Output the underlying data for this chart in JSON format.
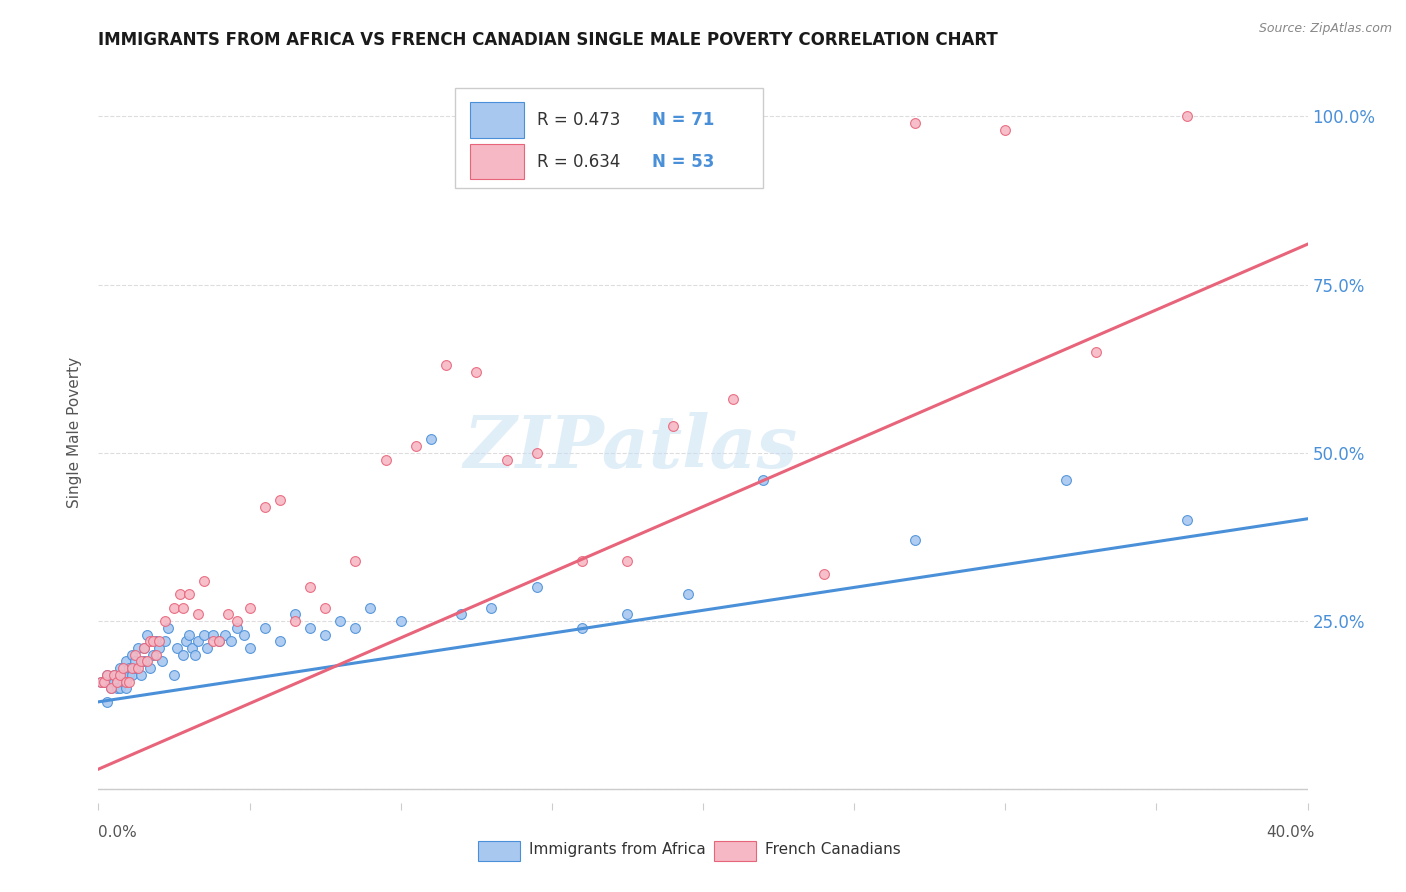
{
  "title": "IMMIGRANTS FROM AFRICA VS FRENCH CANADIAN SINGLE MALE POVERTY CORRELATION CHART",
  "source": "Source: ZipAtlas.com",
  "ylabel": "Single Male Poverty",
  "xlim": [
    0.0,
    0.4
  ],
  "ylim": [
    -0.02,
    1.08
  ],
  "ytick_positions": [
    0.0,
    0.25,
    0.5,
    0.75,
    1.0
  ],
  "ytick_labels": [
    "",
    "25.0%",
    "50.0%",
    "75.0%",
    "100.0%"
  ],
  "blue_color": "#A8C8F0",
  "pink_color": "#F5B8C4",
  "blue_line_color": "#4A90D9",
  "pink_line_color": "#E8647A",
  "legend_text_color": "#4A90D9",
  "grid_color": "#DDDDDD",
  "R_blue": 0.473,
  "N_blue": 71,
  "R_pink": 0.634,
  "N_pink": 53,
  "blue_x": [
    0.001,
    0.002,
    0.003,
    0.003,
    0.004,
    0.004,
    0.005,
    0.005,
    0.006,
    0.006,
    0.007,
    0.007,
    0.008,
    0.008,
    0.009,
    0.009,
    0.01,
    0.01,
    0.011,
    0.011,
    0.012,
    0.012,
    0.013,
    0.014,
    0.015,
    0.015,
    0.016,
    0.017,
    0.018,
    0.019,
    0.02,
    0.021,
    0.022,
    0.023,
    0.025,
    0.026,
    0.028,
    0.029,
    0.03,
    0.031,
    0.032,
    0.033,
    0.035,
    0.036,
    0.038,
    0.04,
    0.042,
    0.044,
    0.046,
    0.048,
    0.05,
    0.055,
    0.06,
    0.065,
    0.07,
    0.075,
    0.08,
    0.085,
    0.09,
    0.1,
    0.11,
    0.12,
    0.13,
    0.145,
    0.16,
    0.175,
    0.195,
    0.22,
    0.27,
    0.32,
    0.36
  ],
  "blue_y": [
    0.16,
    0.16,
    0.17,
    0.13,
    0.16,
    0.15,
    0.16,
    0.17,
    0.16,
    0.15,
    0.18,
    0.15,
    0.17,
    0.16,
    0.19,
    0.15,
    0.17,
    0.18,
    0.17,
    0.2,
    0.18,
    0.19,
    0.21,
    0.17,
    0.19,
    0.21,
    0.23,
    0.18,
    0.2,
    0.22,
    0.21,
    0.19,
    0.22,
    0.24,
    0.17,
    0.21,
    0.2,
    0.22,
    0.23,
    0.21,
    0.2,
    0.22,
    0.23,
    0.21,
    0.23,
    0.22,
    0.23,
    0.22,
    0.24,
    0.23,
    0.21,
    0.24,
    0.22,
    0.26,
    0.24,
    0.23,
    0.25,
    0.24,
    0.27,
    0.25,
    0.52,
    0.26,
    0.27,
    0.3,
    0.24,
    0.26,
    0.29,
    0.46,
    0.37,
    0.46,
    0.4
  ],
  "pink_x": [
    0.001,
    0.002,
    0.003,
    0.004,
    0.005,
    0.006,
    0.007,
    0.008,
    0.009,
    0.01,
    0.011,
    0.012,
    0.013,
    0.014,
    0.015,
    0.016,
    0.017,
    0.018,
    0.019,
    0.02,
    0.022,
    0.025,
    0.027,
    0.028,
    0.03,
    0.033,
    0.035,
    0.038,
    0.04,
    0.043,
    0.046,
    0.05,
    0.055,
    0.06,
    0.065,
    0.07,
    0.075,
    0.085,
    0.095,
    0.105,
    0.115,
    0.125,
    0.135,
    0.145,
    0.16,
    0.175,
    0.19,
    0.21,
    0.24,
    0.27,
    0.3,
    0.33,
    0.36
  ],
  "pink_y": [
    0.16,
    0.16,
    0.17,
    0.15,
    0.17,
    0.16,
    0.17,
    0.18,
    0.16,
    0.16,
    0.18,
    0.2,
    0.18,
    0.19,
    0.21,
    0.19,
    0.22,
    0.22,
    0.2,
    0.22,
    0.25,
    0.27,
    0.29,
    0.27,
    0.29,
    0.26,
    0.31,
    0.22,
    0.22,
    0.26,
    0.25,
    0.27,
    0.42,
    0.43,
    0.25,
    0.3,
    0.27,
    0.34,
    0.49,
    0.51,
    0.63,
    0.62,
    0.49,
    0.5,
    0.34,
    0.34,
    0.54,
    0.58,
    0.32,
    0.99,
    0.98,
    0.65,
    1.0
  ],
  "watermark_text": "ZIPatlas",
  "legend_label_blue": "Immigrants from Africa",
  "legend_label_pink": "French Canadians"
}
